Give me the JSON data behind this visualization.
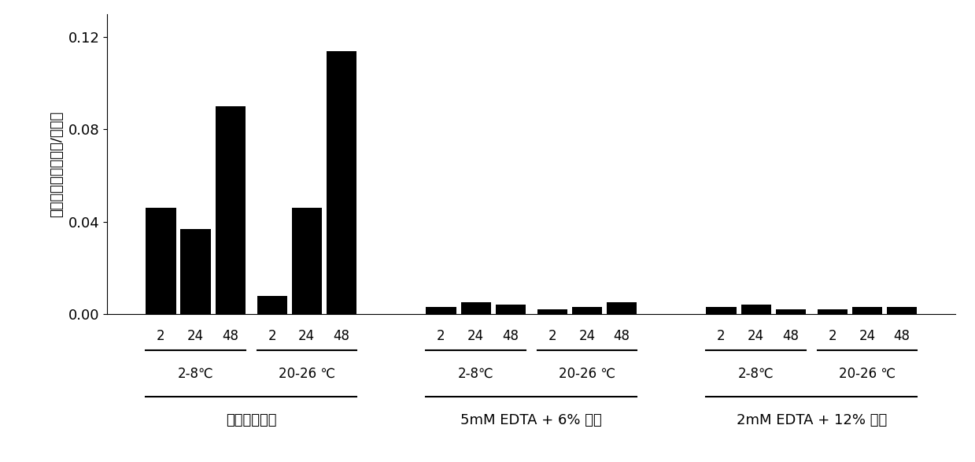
{
  "bar_values": [
    0.046,
    0.037,
    0.09,
    0.008,
    0.046,
    0.114,
    0.003,
    0.005,
    0.004,
    0.002,
    0.003,
    0.005,
    0.003,
    0.004,
    0.002,
    0.002,
    0.003,
    0.003
  ],
  "bar_color": "#000000",
  "ylabel": "蛋白质分解酶（单位/毫升）",
  "ylim": [
    0,
    0.13
  ],
  "yticks": [
    0.0,
    0.04,
    0.08,
    0.12
  ],
  "time_labels": [
    "2",
    "24",
    "48",
    "2",
    "24",
    "48",
    "2",
    "24",
    "48",
    "2",
    "24",
    "48",
    "2",
    "24",
    "48",
    "2",
    "24",
    "48"
  ],
  "temp_labels": [
    "2-8℃",
    "20-26 ℃",
    "2-8℃",
    "20-26 ℃",
    "2-8℃",
    "20-26 ℃"
  ],
  "group_labels": [
    "磷酸盐缓冲液",
    "5mM EDTA + 6% 甘油",
    "2mM EDTA + 12% 甘油"
  ],
  "background_color": "#ffffff"
}
